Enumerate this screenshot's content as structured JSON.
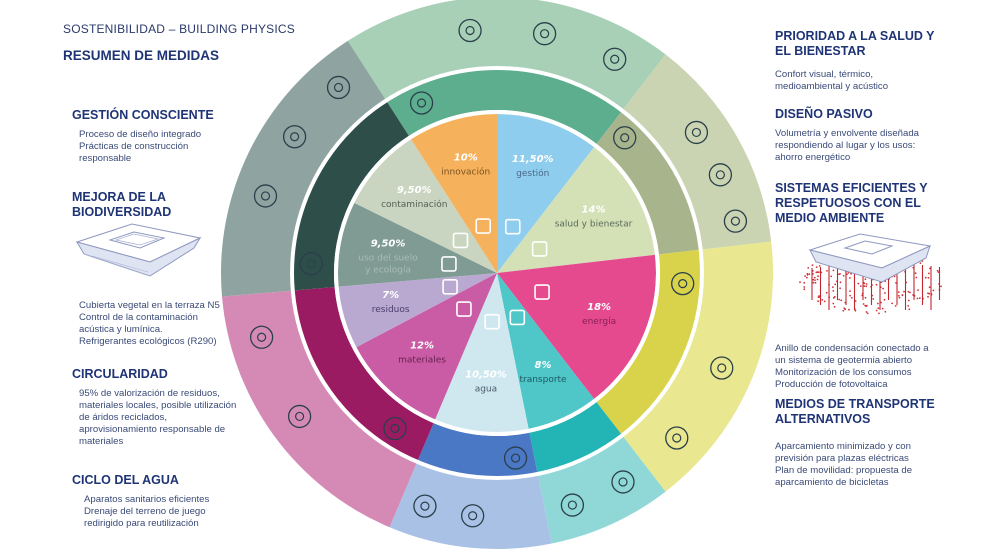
{
  "header": {
    "title": "SOSTENIBILIDAD  – BUILDING  PHYSICS",
    "subtitle": "RESUMEN DE MEDIDAS"
  },
  "left_sections": [
    {
      "title": [
        "GESTIÓN CONSCIENTE"
      ],
      "body": [
        "Proceso de diseño integrado",
        "Prácticas de construcción",
        "responsable"
      ]
    },
    {
      "title": [
        "MEJORA DE LA",
        "BIODIVERSIDAD"
      ],
      "body": [
        "Cubierta vegetal en la terraza N5",
        "Control de la contaminación",
        "acústica y lumínica.",
        "Refrigerantes ecológicos (R290)"
      ]
    },
    {
      "title": [
        "CIRCULARIDAD"
      ],
      "body": [
        "95% de valorización de residuos,",
        "materiales locales, posible utilización",
        "de áridos reciclados,",
        "aprovisionamiento responsable de",
        "materiales"
      ]
    },
    {
      "title": [
        "CICLO DEL AGUA"
      ],
      "body": [
        "Aparatos sanitarios eficientes",
        "Drenaje del terreno de juego",
        "redirigido para reutilización"
      ]
    }
  ],
  "right_sections": [
    {
      "title": [
        "PRIORIDAD A LA SALUD Y",
        "EL BIENESTAR"
      ],
      "body": [
        "Confort visual, térmico,",
        "medioambiental y acústico"
      ]
    },
    {
      "title": [
        "DISEÑO PASIVO"
      ],
      "body": [
        "Volumetría y envolvente diseñada",
        "respondiendo al lugar y los usos:",
        "ahorro energético"
      ]
    },
    {
      "title": [
        "SISTEMAS EFICIENTES Y",
        "RESPETUOSOS CON EL",
        "MEDIO AMBIENTE"
      ],
      "body": [
        "Anillo de condensación conectado a",
        "un sistema de geotermia abierto",
        "Monitorización de los consumos",
        "Producción de fotovoltaica"
      ]
    },
    {
      "title": [
        "MEDIOS DE TRANSPORTE",
        "ALTERNATIVOS"
      ],
      "body": [
        "Aparcamiento minimizado y con",
        "previsión para plazas eléctricas",
        "Plan de movilidad: propuesta de",
        "aparcamiento de bicicletas"
      ]
    }
  ],
  "chart_data": {
    "type": "pie",
    "start": "top",
    "direction": "clockwise",
    "slices": [
      {
        "label": "gestión",
        "value_label": "11,50%",
        "value": 11.5,
        "color": "#8fcdee",
        "text_color": "#4a6a8a",
        "icon": "org-chart-icon"
      },
      {
        "label": "salud y bienestar",
        "value_label": "14%",
        "value": 14,
        "color": "#d4e1b6",
        "text_color": "#5a6a5a",
        "icon": "heartbeat-icon"
      },
      {
        "label": "energía",
        "value_label": "18%",
        "value": 18,
        "color": "#e54a8f",
        "text_color": "#8a1e55",
        "icon": "lightning-icon"
      },
      {
        "label": "transporte",
        "value_label": "8%",
        "value": 8,
        "color": "#4fc6c8",
        "text_color": "#1d5a64",
        "icon": "train-icon"
      },
      {
        "label": "agua",
        "value_label": "10,50%",
        "value": 10.5,
        "color": "#cfe8f0",
        "text_color": "#4a5a6a",
        "icon": "water-drop-icon"
      },
      {
        "label": "materiales",
        "value_label": "12%",
        "value": 12,
        "color": "#c95ca4",
        "text_color": "#6a1e52",
        "icon": "bricks-icon"
      },
      {
        "label": "residuos",
        "value_label": "7%",
        "value": 7,
        "color": "#b9a9d1",
        "text_color": "#4a3d6a",
        "icon": "recycle-icon"
      },
      {
        "label": "uso del suelo\ny ecología",
        "value_label": "9,50%",
        "value": 9.5,
        "color": "#7f9b93",
        "text_color": "#a9bcb6",
        "icon": "leaf-icon"
      },
      {
        "label": "contaminación",
        "value_label": "9,50%",
        "value": 9.5,
        "color": "#c9d5c0",
        "text_color": "#556055",
        "icon": "chimney-icon"
      },
      {
        "label": "innovación",
        "value_label": "10%",
        "value": 10,
        "color": "#f6b15d",
        "text_color": "#7a5320",
        "icon": "innovation-icon"
      }
    ],
    "rings": [
      {
        "slices": [
          "innovación",
          "gestión"
        ],
        "inner_color": "#5dae8e",
        "outer_color": "#a7d0b7",
        "icons": [
          "handshake-icon",
          "network-icon",
          "gear-leaf-icon",
          "smart-building-icon"
        ]
      },
      {
        "slices": [
          "salud y bienestar"
        ],
        "inner_color": "#a8b58c",
        "outer_color": "#cad4b2",
        "icons": [
          "head-heart-icon",
          "eye-icon",
          "thermometer-icon",
          "ear-icon"
        ]
      },
      {
        "slices": [
          "energía"
        ],
        "inner_color": "#d9d34b",
        "outer_color": "#e9e78f",
        "icons": [
          "lightbulb-hand-icon",
          "energy-icon",
          "solar-panel-icon"
        ]
      },
      {
        "slices": [
          "transporte"
        ],
        "inner_color": "#23b4b5",
        "outer_color": "#8fd8d7",
        "icons": [
          "bicycle-icon",
          "electric-car-icon"
        ]
      },
      {
        "slices": [
          "agua"
        ],
        "inner_color": "#4b78c5",
        "outer_color": "#aac1e6",
        "icons": [
          "water-cycle-icon",
          "faucet-icon",
          "water-tank-icon"
        ]
      },
      {
        "slices": [
          "materiales",
          "residuos"
        ],
        "inner_color": "#9b1b63",
        "outer_color": "#d58ab6",
        "icons": [
          "hands-globe-icon",
          "ghg-icon",
          "recycle-icon"
        ]
      },
      {
        "slices": [
          "uso del suelo\ny ecología",
          "contaminación"
        ],
        "inner_color": "#2e4f49",
        "outer_color": "#8fa4a0",
        "icons": [
          "recycle-globe-icon",
          "sun-icon",
          "wave-icon",
          "plant-location-icon"
        ]
      }
    ]
  }
}
